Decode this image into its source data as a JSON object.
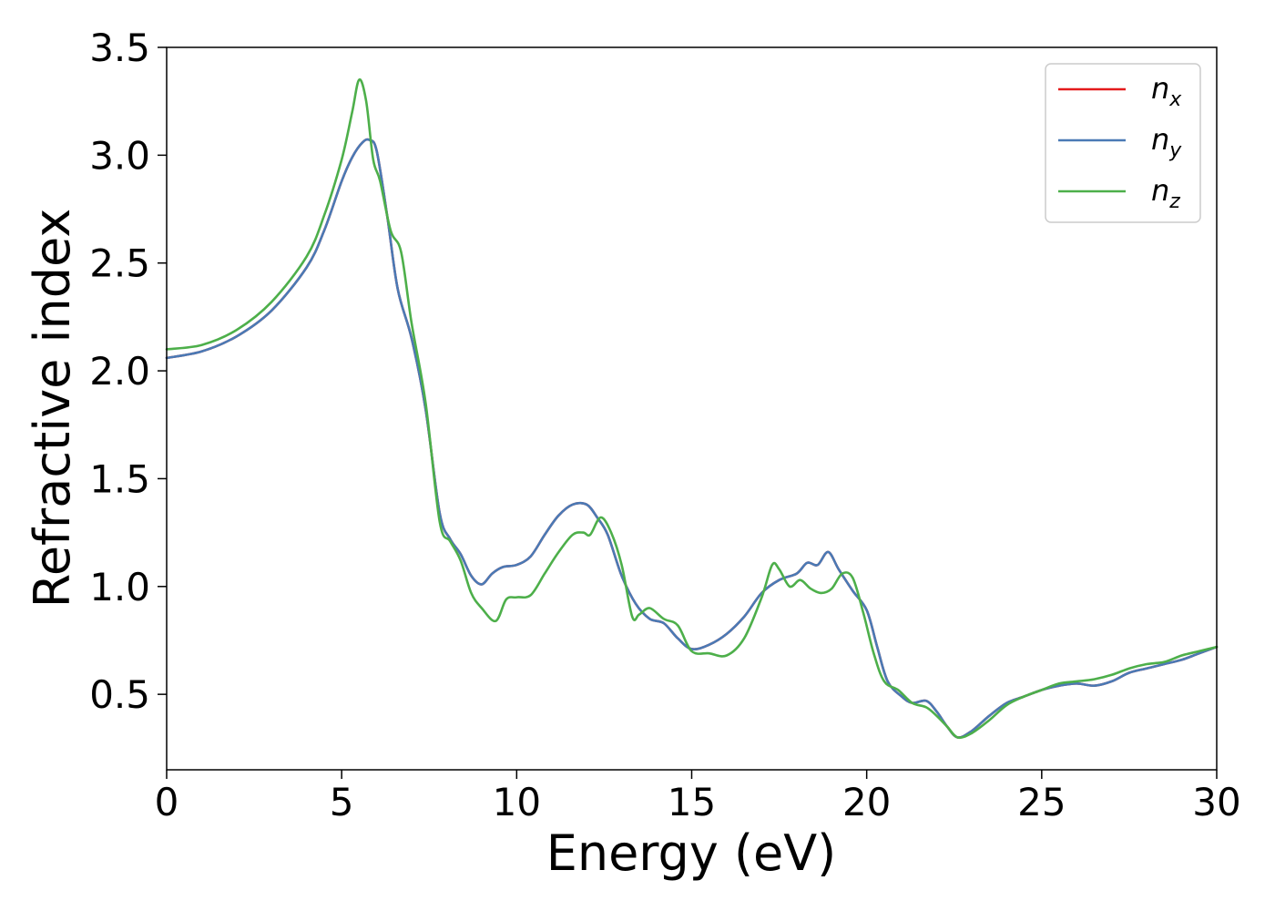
{
  "chart_data": {
    "type": "line",
    "xlabel": "Energy (eV)",
    "ylabel": "Refractive index",
    "xlim": [
      0,
      30
    ],
    "ylim": [
      0.15,
      3.5
    ],
    "xticks": [
      "0",
      "5",
      "10",
      "15",
      "20",
      "25",
      "30"
    ],
    "xtick_values": [
      0,
      5,
      10,
      15,
      20,
      25,
      30
    ],
    "yticks": [
      "0.5",
      "1.0",
      "1.5",
      "2.0",
      "2.5",
      "3.0",
      "3.5"
    ],
    "ytick_values": [
      0.5,
      1.0,
      1.5,
      2.0,
      2.5,
      3.0,
      3.5
    ],
    "grid": false,
    "legend_position": "top-right",
    "series": [
      {
        "name": "n_x",
        "legend_base": "n",
        "legend_sub": "x",
        "color": "#e41a1c",
        "x": [
          0,
          1,
          2,
          3,
          4,
          4.5,
          5,
          5.3,
          5.6,
          5.8,
          6.0,
          6.3,
          6.6,
          7.0,
          7.4,
          7.8,
          8.1,
          8.4,
          8.7,
          9.0,
          9.3,
          9.6,
          10.0,
          10.4,
          10.8,
          11.2,
          11.6,
          12.0,
          12.3,
          12.6,
          13.0,
          13.4,
          13.8,
          14.2,
          14.6,
          15.0,
          15.5,
          16.0,
          16.5,
          17.0,
          17.5,
          18.0,
          18.3,
          18.6,
          18.9,
          19.2,
          19.6,
          20.0,
          20.3,
          20.6,
          21.0,
          21.3,
          21.7,
          22.0,
          22.3,
          22.6,
          23.0,
          23.5,
          24.0,
          24.5,
          25.0,
          25.5,
          26.0,
          26.5,
          27.0,
          27.5,
          28.0,
          28.5,
          29.0,
          29.5,
          30.0
        ],
        "y": [
          2.06,
          2.09,
          2.16,
          2.28,
          2.48,
          2.65,
          2.88,
          2.99,
          3.06,
          3.07,
          3.02,
          2.72,
          2.38,
          2.15,
          1.82,
          1.34,
          1.22,
          1.15,
          1.05,
          1.01,
          1.06,
          1.09,
          1.1,
          1.14,
          1.24,
          1.33,
          1.38,
          1.38,
          1.32,
          1.24,
          1.05,
          0.92,
          0.85,
          0.83,
          0.76,
          0.71,
          0.73,
          0.78,
          0.86,
          0.97,
          1.03,
          1.06,
          1.11,
          1.1,
          1.16,
          1.08,
          0.98,
          0.89,
          0.72,
          0.56,
          0.49,
          0.46,
          0.47,
          0.42,
          0.35,
          0.3,
          0.33,
          0.4,
          0.46,
          0.49,
          0.52,
          0.54,
          0.55,
          0.54,
          0.56,
          0.6,
          0.62,
          0.64,
          0.66,
          0.69,
          0.72
        ]
      },
      {
        "name": "n_y",
        "legend_base": "n",
        "legend_sub": "y",
        "color": "#4a7ab5",
        "x": [
          0,
          1,
          2,
          3,
          4,
          4.5,
          5,
          5.3,
          5.6,
          5.8,
          6.0,
          6.3,
          6.6,
          7.0,
          7.4,
          7.8,
          8.1,
          8.4,
          8.7,
          9.0,
          9.3,
          9.6,
          10.0,
          10.4,
          10.8,
          11.2,
          11.6,
          12.0,
          12.3,
          12.6,
          13.0,
          13.4,
          13.8,
          14.2,
          14.6,
          15.0,
          15.5,
          16.0,
          16.5,
          17.0,
          17.5,
          18.0,
          18.3,
          18.6,
          18.9,
          19.2,
          19.6,
          20.0,
          20.3,
          20.6,
          21.0,
          21.3,
          21.7,
          22.0,
          22.3,
          22.6,
          23.0,
          23.5,
          24.0,
          24.5,
          25.0,
          25.5,
          26.0,
          26.5,
          27.0,
          27.5,
          28.0,
          28.5,
          29.0,
          29.5,
          30.0
        ],
        "y": [
          2.06,
          2.09,
          2.16,
          2.28,
          2.48,
          2.65,
          2.88,
          2.99,
          3.06,
          3.07,
          3.02,
          2.72,
          2.38,
          2.15,
          1.82,
          1.34,
          1.22,
          1.15,
          1.05,
          1.01,
          1.06,
          1.09,
          1.1,
          1.14,
          1.24,
          1.33,
          1.38,
          1.38,
          1.32,
          1.24,
          1.05,
          0.92,
          0.85,
          0.83,
          0.76,
          0.71,
          0.73,
          0.78,
          0.86,
          0.97,
          1.03,
          1.06,
          1.11,
          1.1,
          1.16,
          1.08,
          0.98,
          0.89,
          0.72,
          0.56,
          0.49,
          0.46,
          0.47,
          0.42,
          0.35,
          0.3,
          0.33,
          0.4,
          0.46,
          0.49,
          0.52,
          0.54,
          0.55,
          0.54,
          0.56,
          0.6,
          0.62,
          0.64,
          0.66,
          0.69,
          0.72
        ]
      },
      {
        "name": "n_z",
        "legend_base": "n",
        "legend_sub": "z",
        "color": "#4daf4a",
        "x": [
          0,
          1,
          2,
          3,
          4,
          4.5,
          5,
          5.3,
          5.5,
          5.7,
          5.9,
          6.1,
          6.4,
          6.7,
          7.0,
          7.4,
          7.8,
          8.1,
          8.4,
          8.7,
          9.0,
          9.4,
          9.7,
          10.0,
          10.4,
          10.8,
          11.2,
          11.6,
          11.9,
          12.1,
          12.4,
          12.7,
          13.0,
          13.3,
          13.5,
          13.8,
          14.2,
          14.6,
          15.0,
          15.5,
          16.0,
          16.5,
          17.0,
          17.3,
          17.5,
          17.8,
          18.1,
          18.4,
          18.7,
          19.0,
          19.3,
          19.6,
          19.9,
          20.2,
          20.5,
          20.9,
          21.3,
          21.7,
          22.0,
          22.3,
          22.6,
          23.0,
          23.5,
          24.0,
          24.5,
          25.0,
          25.5,
          26.0,
          26.5,
          27.0,
          27.5,
          28.0,
          28.5,
          29.0,
          29.5,
          30.0
        ],
        "y": [
          2.1,
          2.12,
          2.19,
          2.32,
          2.53,
          2.72,
          2.98,
          3.2,
          3.35,
          3.25,
          2.98,
          2.88,
          2.65,
          2.55,
          2.22,
          1.85,
          1.3,
          1.21,
          1.12,
          0.97,
          0.9,
          0.84,
          0.94,
          0.95,
          0.96,
          1.06,
          1.16,
          1.24,
          1.25,
          1.24,
          1.32,
          1.25,
          1.1,
          0.86,
          0.87,
          0.9,
          0.85,
          0.82,
          0.7,
          0.69,
          0.68,
          0.76,
          0.95,
          1.1,
          1.08,
          1.0,
          1.03,
          0.99,
          0.97,
          0.99,
          1.06,
          1.04,
          0.88,
          0.69,
          0.56,
          0.52,
          0.46,
          0.44,
          0.4,
          0.35,
          0.3,
          0.32,
          0.38,
          0.45,
          0.49,
          0.52,
          0.55,
          0.56,
          0.57,
          0.59,
          0.62,
          0.64,
          0.65,
          0.68,
          0.7,
          0.72
        ]
      }
    ]
  }
}
